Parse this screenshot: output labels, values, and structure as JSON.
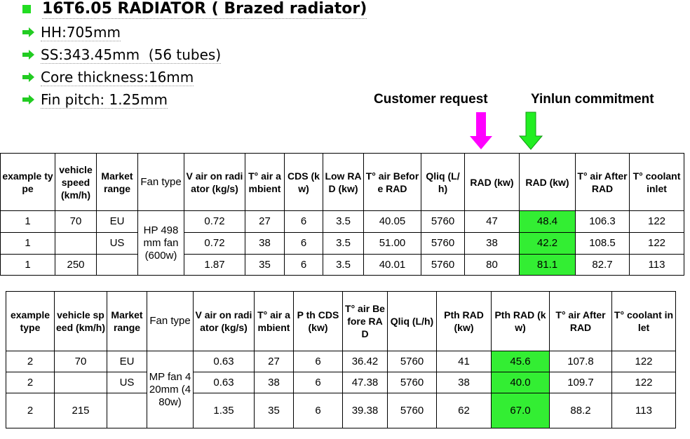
{
  "title": "16T6.05 RADIATOR ( Brazed radiator)",
  "bullets": [
    "HH:705mm",
    "SS:343.45mm  (56 tubes)",
    "Core thickness:16mm",
    "Fin pitch: 1.25mm"
  ],
  "labels": {
    "customer": "Customer request",
    "yinlun": "Yinlun commitment"
  },
  "table1": {
    "header": [
      "example type",
      "vehicle speed (km/h)",
      "Market range",
      "Fan type",
      "V air on radiator (kg/s)",
      "T° air ambient",
      "CDS (kw)",
      "Low RAD (kw)",
      "T° air Before RAD",
      "Qliq (L/h)",
      "RAD (kw)",
      "RAD (kw)",
      "T° air After RAD",
      "T° coolant inlet"
    ],
    "fan": "HP 498mm fan (600w)",
    "rows": [
      [
        "1",
        "70",
        "EU",
        "0.72",
        "27",
        "6",
        "3.5",
        "40.05",
        "5760",
        "47",
        "48.4",
        "106.3",
        "122"
      ],
      [
        "1",
        null,
        "US",
        "0.72",
        "38",
        "6",
        "3.5",
        "51.00",
        "5760",
        "38",
        "42.2",
        "108.5",
        "122"
      ],
      [
        "1",
        "250",
        null,
        "1.87",
        "35",
        "6",
        "3.5",
        "40.01",
        "5760",
        "80",
        "81.1",
        "82.7",
        "113"
      ]
    ]
  },
  "table2": {
    "header": [
      "example type",
      "vehicle speed (km/h)",
      "Market range",
      "Fan type",
      "V air on radiator (kg/s)",
      "T° air ambient",
      "P th CDS (kw)",
      "T° air Before RAD",
      "Qliq (L/h)",
      "Pth RAD (kw)",
      "Pth RAD (kw)",
      "T° air After RAD",
      "T° coolant inlet"
    ],
    "fan": "MP fan 420mm (480w)",
    "rows": [
      [
        "2",
        "70",
        "EU",
        "0.63",
        "27",
        "6",
        "36.42",
        "5760",
        "41",
        "45.6",
        "107.8",
        "122"
      ],
      [
        "2",
        null,
        "US",
        "0.63",
        "38",
        "6",
        "47.38",
        "5760",
        "38",
        "40.0",
        "109.7",
        "122"
      ],
      [
        "2",
        "215",
        null,
        "1.35",
        "35",
        "6",
        "39.38",
        "5760",
        "62",
        "67.0",
        "88.2",
        "113"
      ]
    ]
  }
}
